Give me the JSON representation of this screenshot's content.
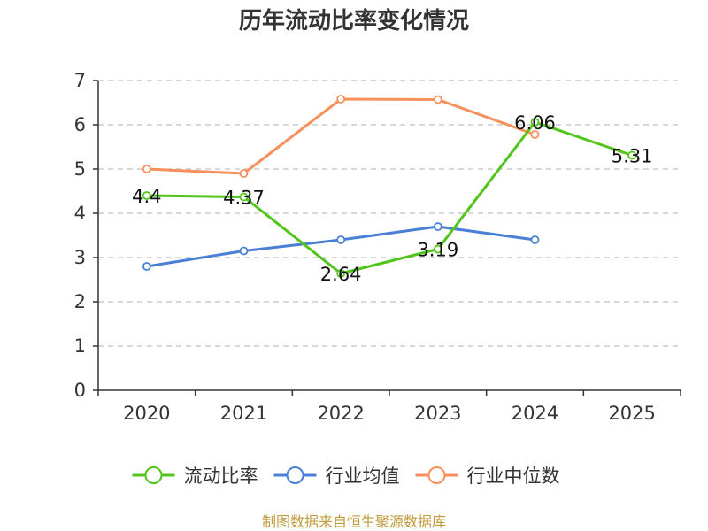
{
  "chart_data": {
    "type": "line",
    "title": "历年流动比率变化情况",
    "categories": [
      "2020",
      "2021",
      "2022",
      "2023",
      "2024",
      "2025"
    ],
    "ylim": [
      0,
      7
    ],
    "yticks": [
      0,
      1,
      2,
      3,
      4,
      5,
      6,
      7
    ],
    "grid": true,
    "legend_position": "bottom",
    "series": [
      {
        "name": "流动比率",
        "color": "#52c41a",
        "values": [
          4.4,
          4.37,
          2.64,
          3.19,
          6.06,
          5.31
        ],
        "labels": [
          "4.4",
          "4.37",
          "2.64",
          "3.19",
          "6.06",
          "5.31"
        ]
      },
      {
        "name": "行业均值",
        "color": "#4a7fd6",
        "values": [
          2.8,
          3.15,
          3.4,
          3.7,
          3.4,
          null
        ]
      },
      {
        "name": "行业中位数",
        "color": "#f7905a",
        "values": [
          5.0,
          4.9,
          6.58,
          6.57,
          5.78,
          null
        ]
      }
    ],
    "source": "制图数据来自恒生聚源数据库",
    "source_color": "#c09a3b"
  }
}
